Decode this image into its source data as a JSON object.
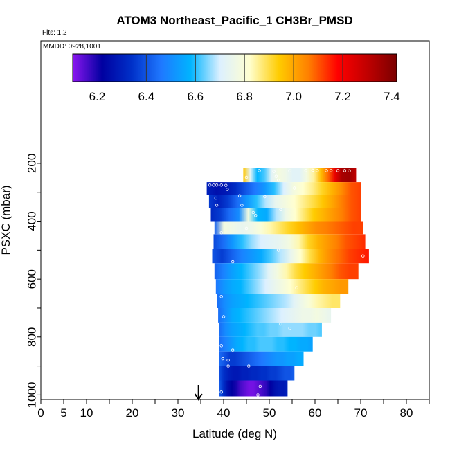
{
  "chart_data": {
    "type": "heatmap",
    "title": "ATOM3 Northeast_Pacific_1 CH3Br_PMSD",
    "annotations": {
      "flights": "Flts: 1,2",
      "dates": "MMDD: 0928,1001"
    },
    "xlabel": "Latitude (deg N)",
    "ylabel": "PSXC (mbar)",
    "xlim": [
      0,
      85
    ],
    "ylim": [
      1010,
      0
    ],
    "xticks": [
      0,
      5,
      10,
      20,
      30,
      40,
      50,
      60,
      70,
      80
    ],
    "yticks": [
      200,
      400,
      600,
      800,
      1000
    ],
    "colorbar": {
      "range": [
        6.1,
        7.42
      ],
      "ticks": [
        6.2,
        6.4,
        6.6,
        6.8,
        7.0,
        7.2,
        7.4
      ],
      "tick_labels": [
        "6.2",
        "6.4",
        "6.6",
        "6.8",
        "7.0",
        "7.2",
        "7.4"
      ],
      "colors": [
        "#8b16f0",
        "#0000a0",
        "#0030c8",
        "#1f78ff",
        "#00b4ff",
        "#dcf0ff",
        "#ffffd0",
        "#ffcc00",
        "#ff8000",
        "#ff0000",
        "#c00000",
        "#7a0000"
      ],
      "dividers": [
        6.4,
        6.6,
        6.8,
        7.0,
        7.2
      ]
    },
    "marker": {
      "latitude": 34.5,
      "symbol": "arrow-down"
    },
    "layers": [
      {
        "p_top": 215,
        "p_bottom": 265,
        "lat_start": 44.3,
        "lat_end": 69.0,
        "values": [
          6.95,
          6.72,
          6.58,
          6.62,
          6.72,
          6.78,
          6.76,
          6.72,
          6.72,
          6.78,
          6.85,
          6.96,
          7.08,
          7.22,
          7.34,
          7.36,
          7.3
        ]
      },
      {
        "p_top": 265,
        "p_bottom": 310,
        "lat_start": 36.3,
        "lat_end": 70.0,
        "values": [
          6.3,
          6.26,
          6.28,
          6.33,
          6.4,
          6.46,
          6.52,
          6.6,
          6.7,
          6.78,
          6.82,
          6.86,
          6.92,
          6.98,
          7.04,
          7.1,
          7.12
        ]
      },
      {
        "p_top": 310,
        "p_bottom": 355,
        "lat_start": 36.8,
        "lat_end": 70.0,
        "values": [
          6.36,
          6.3,
          6.36,
          6.44,
          6.52,
          6.6,
          6.68,
          6.74,
          6.78,
          6.82,
          6.86,
          6.9,
          6.95,
          7.0,
          7.06,
          7.1,
          7.12
        ]
      },
      {
        "p_top": 355,
        "p_bottom": 400,
        "lat_start": 37.2,
        "lat_end": 70.0,
        "values": [
          6.32,
          6.36,
          6.44,
          6.5,
          6.78,
          6.58,
          6.56,
          6.68,
          6.76,
          6.82,
          6.88,
          6.94,
          6.98,
          7.02,
          7.06,
          7.1,
          7.12
        ]
      },
      {
        "p_top": 400,
        "p_bottom": 445,
        "lat_start": 38.0,
        "lat_end": 70.5,
        "values": [
          6.42,
          6.78,
          6.76,
          6.74,
          6.76,
          6.8,
          6.84,
          6.88,
          6.92,
          6.96,
          7.0,
          7.04,
          7.06,
          7.08,
          7.1,
          7.12,
          7.12
        ]
      },
      {
        "p_top": 445,
        "p_bottom": 495,
        "lat_start": 37.8,
        "lat_end": 71.0,
        "values": [
          6.38,
          6.44,
          6.52,
          6.6,
          6.66,
          6.7,
          6.72,
          6.74,
          6.78,
          6.84,
          6.92,
          6.98,
          7.02,
          7.06,
          7.1,
          7.12,
          7.14
        ]
      },
      {
        "p_top": 495,
        "p_bottom": 545,
        "lat_start": 37.5,
        "lat_end": 71.8,
        "values": [
          6.4,
          6.36,
          6.42,
          6.48,
          6.52,
          6.56,
          6.62,
          6.68,
          6.74,
          6.82,
          6.9,
          6.98,
          7.04,
          7.08,
          7.12,
          7.14,
          7.16
        ]
      },
      {
        "p_top": 545,
        "p_bottom": 600,
        "lat_start": 38.0,
        "lat_end": 69.5,
        "values": [
          6.42,
          6.48,
          6.54,
          6.58,
          6.62,
          6.66,
          6.72,
          6.78,
          6.84,
          6.9,
          6.94,
          6.98,
          7.02,
          7.06,
          7.1,
          7.12,
          7.12
        ]
      },
      {
        "p_top": 600,
        "p_bottom": 650,
        "lat_start": 38.3,
        "lat_end": 67.3,
        "values": [
          6.46,
          6.52,
          6.56,
          6.58,
          6.62,
          6.66,
          6.7,
          6.74,
          6.78,
          6.82,
          6.86,
          6.9,
          6.94,
          6.98,
          7.0,
          7.02,
          7.02
        ]
      },
      {
        "p_top": 650,
        "p_bottom": 700,
        "lat_start": 38.5,
        "lat_end": 65.5,
        "values": [
          6.44,
          6.5,
          6.54,
          6.56,
          6.58,
          6.6,
          6.62,
          6.64,
          6.66,
          6.68,
          6.72,
          6.76,
          6.8,
          6.84,
          6.86,
          6.88,
          6.88
        ]
      },
      {
        "p_top": 700,
        "p_bottom": 750,
        "lat_start": 38.8,
        "lat_end": 63.5,
        "values": [
          6.44,
          6.5,
          6.56,
          6.58,
          6.6,
          6.62,
          6.64,
          6.66,
          6.68,
          6.7,
          6.72,
          6.74,
          6.76,
          6.76,
          6.78,
          6.76,
          6.74
        ]
      },
      {
        "p_top": 750,
        "p_bottom": 800,
        "lat_start": 39.0,
        "lat_end": 61.5,
        "values": [
          6.44,
          6.5,
          6.54,
          6.56,
          6.58,
          6.6,
          6.62,
          6.62,
          6.64,
          6.64,
          6.66,
          6.66,
          6.66,
          6.66,
          6.64,
          6.64,
          6.62
        ]
      },
      {
        "p_top": 800,
        "p_bottom": 850,
        "lat_start": 39.0,
        "lat_end": 59.5,
        "values": [
          6.44,
          6.48,
          6.52,
          6.56,
          6.58,
          6.6,
          6.6,
          6.62,
          6.62,
          6.62,
          6.6,
          6.6,
          6.58,
          6.58,
          6.56,
          6.56,
          6.54
        ]
      },
      {
        "p_top": 850,
        "p_bottom": 900,
        "lat_start": 39.0,
        "lat_end": 57.5,
        "values": [
          6.44,
          6.4,
          6.36,
          6.36,
          6.38,
          6.4,
          6.42,
          6.44,
          6.46,
          6.48,
          6.5,
          6.52,
          6.52,
          6.54,
          6.54,
          6.56,
          6.56
        ]
      },
      {
        "p_top": 900,
        "p_bottom": 950,
        "lat_start": 39.0,
        "lat_end": 55.5,
        "values": [
          6.4,
          6.34,
          6.3,
          6.28,
          6.28,
          6.3,
          6.3,
          6.32,
          6.32,
          6.34,
          6.34,
          6.36,
          6.36,
          6.38,
          6.4,
          6.4,
          6.42
        ]
      },
      {
        "p_top": 950,
        "p_bottom": 1005,
        "lat_start": 39.0,
        "lat_end": 54.0,
        "values": [
          6.42,
          6.34,
          6.26,
          6.22,
          6.2,
          6.16,
          6.14,
          6.12,
          6.12,
          6.14,
          6.16,
          6.18,
          6.22,
          6.26,
          6.28,
          6.28,
          6.3
        ]
      }
    ],
    "sample_points": [
      [
        47.8,
        225
      ],
      [
        51.0,
        228
      ],
      [
        54.5,
        226
      ],
      [
        58.0,
        225
      ],
      [
        59.5,
        224
      ],
      [
        60.5,
        225
      ],
      [
        62.5,
        225
      ],
      [
        63.5,
        225
      ],
      [
        65.0,
        225
      ],
      [
        66.5,
        225
      ],
      [
        67.5,
        226
      ],
      [
        45.0,
        248
      ],
      [
        51.5,
        245
      ],
      [
        52.0,
        258
      ],
      [
        37.0,
        275
      ],
      [
        37.8,
        275
      ],
      [
        38.5,
        275
      ],
      [
        39.5,
        275
      ],
      [
        40.5,
        276
      ],
      [
        40.8,
        290
      ],
      [
        55.5,
        285
      ],
      [
        38.3,
        320
      ],
      [
        43.5,
        312
      ],
      [
        49.0,
        315
      ],
      [
        38.5,
        345
      ],
      [
        44.0,
        345
      ],
      [
        46.5,
        370
      ],
      [
        47.0,
        380
      ],
      [
        52.5,
        360
      ],
      [
        39.5,
        440
      ],
      [
        45.0,
        425
      ],
      [
        52.0,
        500
      ],
      [
        70.5,
        520
      ],
      [
        42.0,
        540
      ],
      [
        39.5,
        660
      ],
      [
        56.0,
        630
      ],
      [
        40.0,
        730
      ],
      [
        52.5,
        755
      ],
      [
        54.5,
        770
      ],
      [
        39.5,
        830
      ],
      [
        42.0,
        845
      ],
      [
        39.8,
        875
      ],
      [
        41.0,
        880
      ],
      [
        41.0,
        900
      ],
      [
        45.5,
        900
      ],
      [
        48.0,
        970
      ],
      [
        39.5,
        990
      ],
      [
        47.5,
        1000
      ]
    ]
  }
}
